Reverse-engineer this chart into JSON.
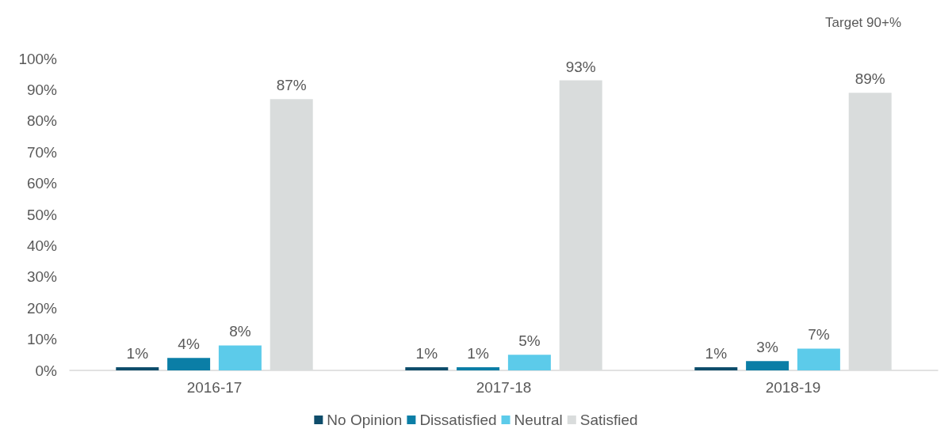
{
  "chart_data": {
    "type": "bar",
    "categories": [
      "2016-17",
      "2017-18",
      "2018-19"
    ],
    "series": [
      {
        "name": "No Opinion",
        "color": "#0e4d6b",
        "values": [
          1,
          1,
          1
        ],
        "value_labels": [
          "1%",
          "1%",
          "1%"
        ]
      },
      {
        "name": "Dissatisfied",
        "color": "#0b7ea6",
        "values": [
          4,
          1,
          3
        ],
        "value_labels": [
          "4%",
          "1%",
          "3%"
        ]
      },
      {
        "name": "Neutral",
        "color": "#5ccbea",
        "values": [
          8,
          5,
          7
        ],
        "value_labels": [
          "8%",
          "5%",
          "7%"
        ]
      },
      {
        "name": "Satisfied",
        "color": "#d9dcdc",
        "values": [
          87,
          93,
          89
        ],
        "value_labels": [
          "87%",
          "93%",
          "89%"
        ]
      }
    ],
    "ylim": [
      0,
      100
    ],
    "yticks": [
      {
        "value": 0,
        "label": "0%"
      },
      {
        "value": 10,
        "label": "10%"
      },
      {
        "value": 20,
        "label": "20%"
      },
      {
        "value": 30,
        "label": "30%"
      },
      {
        "value": 40,
        "label": "40%"
      },
      {
        "value": 50,
        "label": "50%"
      },
      {
        "value": 60,
        "label": "60%"
      },
      {
        "value": 70,
        "label": "70%"
      },
      {
        "value": 80,
        "label": "80%"
      },
      {
        "value": 90,
        "label": "90%"
      },
      {
        "value": 100,
        "label": "100%"
      }
    ],
    "annotations": [
      "Target 90+%"
    ],
    "grid": false,
    "legend": "bottom"
  }
}
